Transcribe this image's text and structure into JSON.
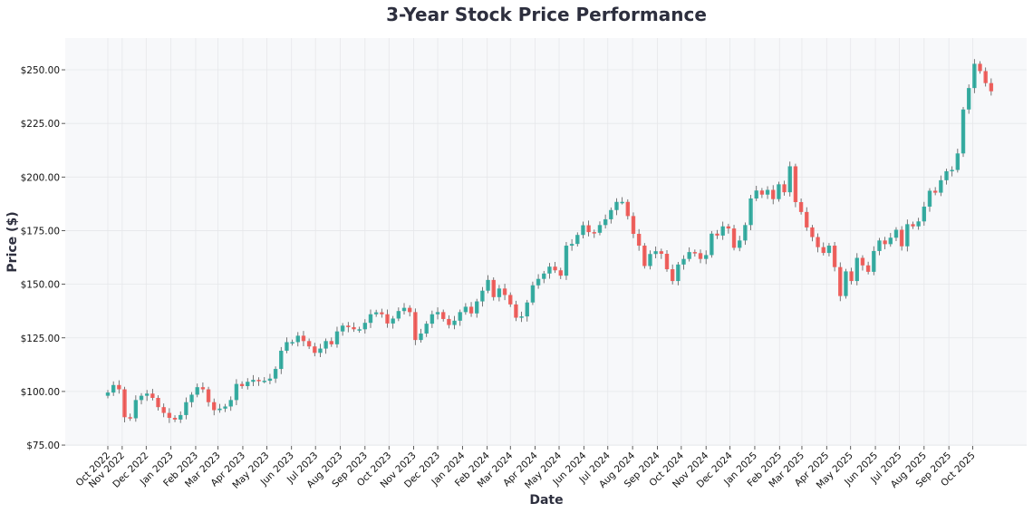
{
  "chart_data": {
    "type": "candlestick",
    "title": "3-Year Stock Price Performance",
    "xlabel": "Date",
    "ylabel": "Price ($)",
    "ylim": [
      74.6,
      264.8
    ],
    "yticks": [
      75,
      100,
      125,
      150,
      175,
      200,
      225,
      250
    ],
    "ytick_labels": [
      "$75.00",
      "$100.00",
      "$125.00",
      "$150.00",
      "$175.00",
      "$200.00",
      "$225.00",
      "$250.00"
    ],
    "xticks": [
      "2022-10-14",
      "2022-11-01",
      "2022-12-01",
      "2023-01-01",
      "2023-02-01",
      "2023-03-01",
      "2023-04-01",
      "2023-05-01",
      "2023-06-01",
      "2023-07-01",
      "2023-08-01",
      "2023-09-01",
      "2023-10-01",
      "2023-11-01",
      "2023-12-01",
      "2024-01-01",
      "2024-02-01",
      "2024-03-01",
      "2024-04-01",
      "2024-05-01",
      "2024-06-01",
      "2024-07-01",
      "2024-08-01",
      "2024-09-01",
      "2024-10-01",
      "2024-11-01",
      "2024-12-01",
      "2025-01-01",
      "2025-02-01",
      "2025-03-01",
      "2025-04-01",
      "2025-05-01",
      "2025-06-01",
      "2025-07-01",
      "2025-08-01",
      "2025-09-01",
      "2025-10-01"
    ],
    "xtick_labels": [
      "Oct 2022",
      "Nov 2022",
      "Dec 2022",
      "Jan 2023",
      "Feb 2023",
      "Mar 2023",
      "Apr 2023",
      "May 2023",
      "Jun 2023",
      "Jul 2023",
      "Aug 2023",
      "Sep 2023",
      "Oct 2023",
      "Nov 2023",
      "Dec 2023",
      "Jan 2024",
      "Feb 2024",
      "Mar 2024",
      "Apr 2024",
      "May 2024",
      "Jun 2024",
      "Jul 2024",
      "Aug 2024",
      "Sep 2024",
      "Oct 2024",
      "Nov 2024",
      "Dec 2024",
      "Jan 2025",
      "Feb 2025",
      "Mar 2025",
      "Apr 2025",
      "May 2025",
      "Jun 2025",
      "Jul 2025",
      "Aug 2025",
      "Sep 2025",
      "Oct 2025"
    ],
    "start_date": "2022-10-14",
    "interval": "weekly",
    "close": [
      99.5,
      103,
      101,
      88,
      87.5,
      96,
      98,
      99,
      97,
      92.7,
      90,
      87.7,
      86.9,
      89,
      95,
      98.5,
      102,
      101,
      95,
      91.3,
      92,
      93,
      96,
      103.5,
      102.5,
      104.5,
      105.4,
      105,
      105,
      106,
      110.5,
      119,
      123,
      123,
      126,
      123.5,
      121,
      118,
      120,
      123.5,
      122,
      128,
      130.7,
      130,
      129,
      129,
      132,
      136,
      136.9,
      136,
      131.7,
      134,
      137.5,
      139,
      137,
      124,
      127,
      131.6,
      136,
      137,
      133.8,
      131,
      133,
      137,
      139.5,
      136.4,
      142,
      147,
      152,
      144,
      148,
      145,
      140.6,
      134.4,
      135,
      141.5,
      149.5,
      152.5,
      155,
      158.2,
      156.5,
      154,
      168,
      168.8,
      173,
      177.5,
      174.3,
      174,
      177.6,
      180.3,
      184.6,
      188.4,
      188.4,
      181.8,
      173.5,
      168,
      158.5,
      164.1,
      165.4,
      164.2,
      157,
      151.5,
      159.2,
      161.8,
      165,
      164.5,
      161.8,
      163.6,
      173.6,
      172.7,
      177,
      176,
      167,
      170.4,
      177.6,
      190,
      193.7,
      191.8,
      194,
      189.7,
      196.6,
      192.9,
      205,
      188.3,
      183.7,
      176.5,
      172,
      167.3,
      164.6,
      168,
      158,
      144.5,
      156,
      151.5,
      162.3,
      158.8,
      155.8,
      165.5,
      170.4,
      168.7,
      171.7,
      175.4,
      167.7,
      178,
      177,
      179.3,
      186.2,
      193.6,
      192.7,
      198.5,
      202.7,
      203.3,
      211,
      231.5,
      241.5,
      252.8,
      249.4,
      243.8,
      240
    ],
    "grid": true,
    "legend": "none",
    "colors": {
      "up": "#26a69a",
      "down": "#ef5350",
      "plot_background": "#f7f8fa",
      "grid": "#e6e7ea"
    }
  }
}
